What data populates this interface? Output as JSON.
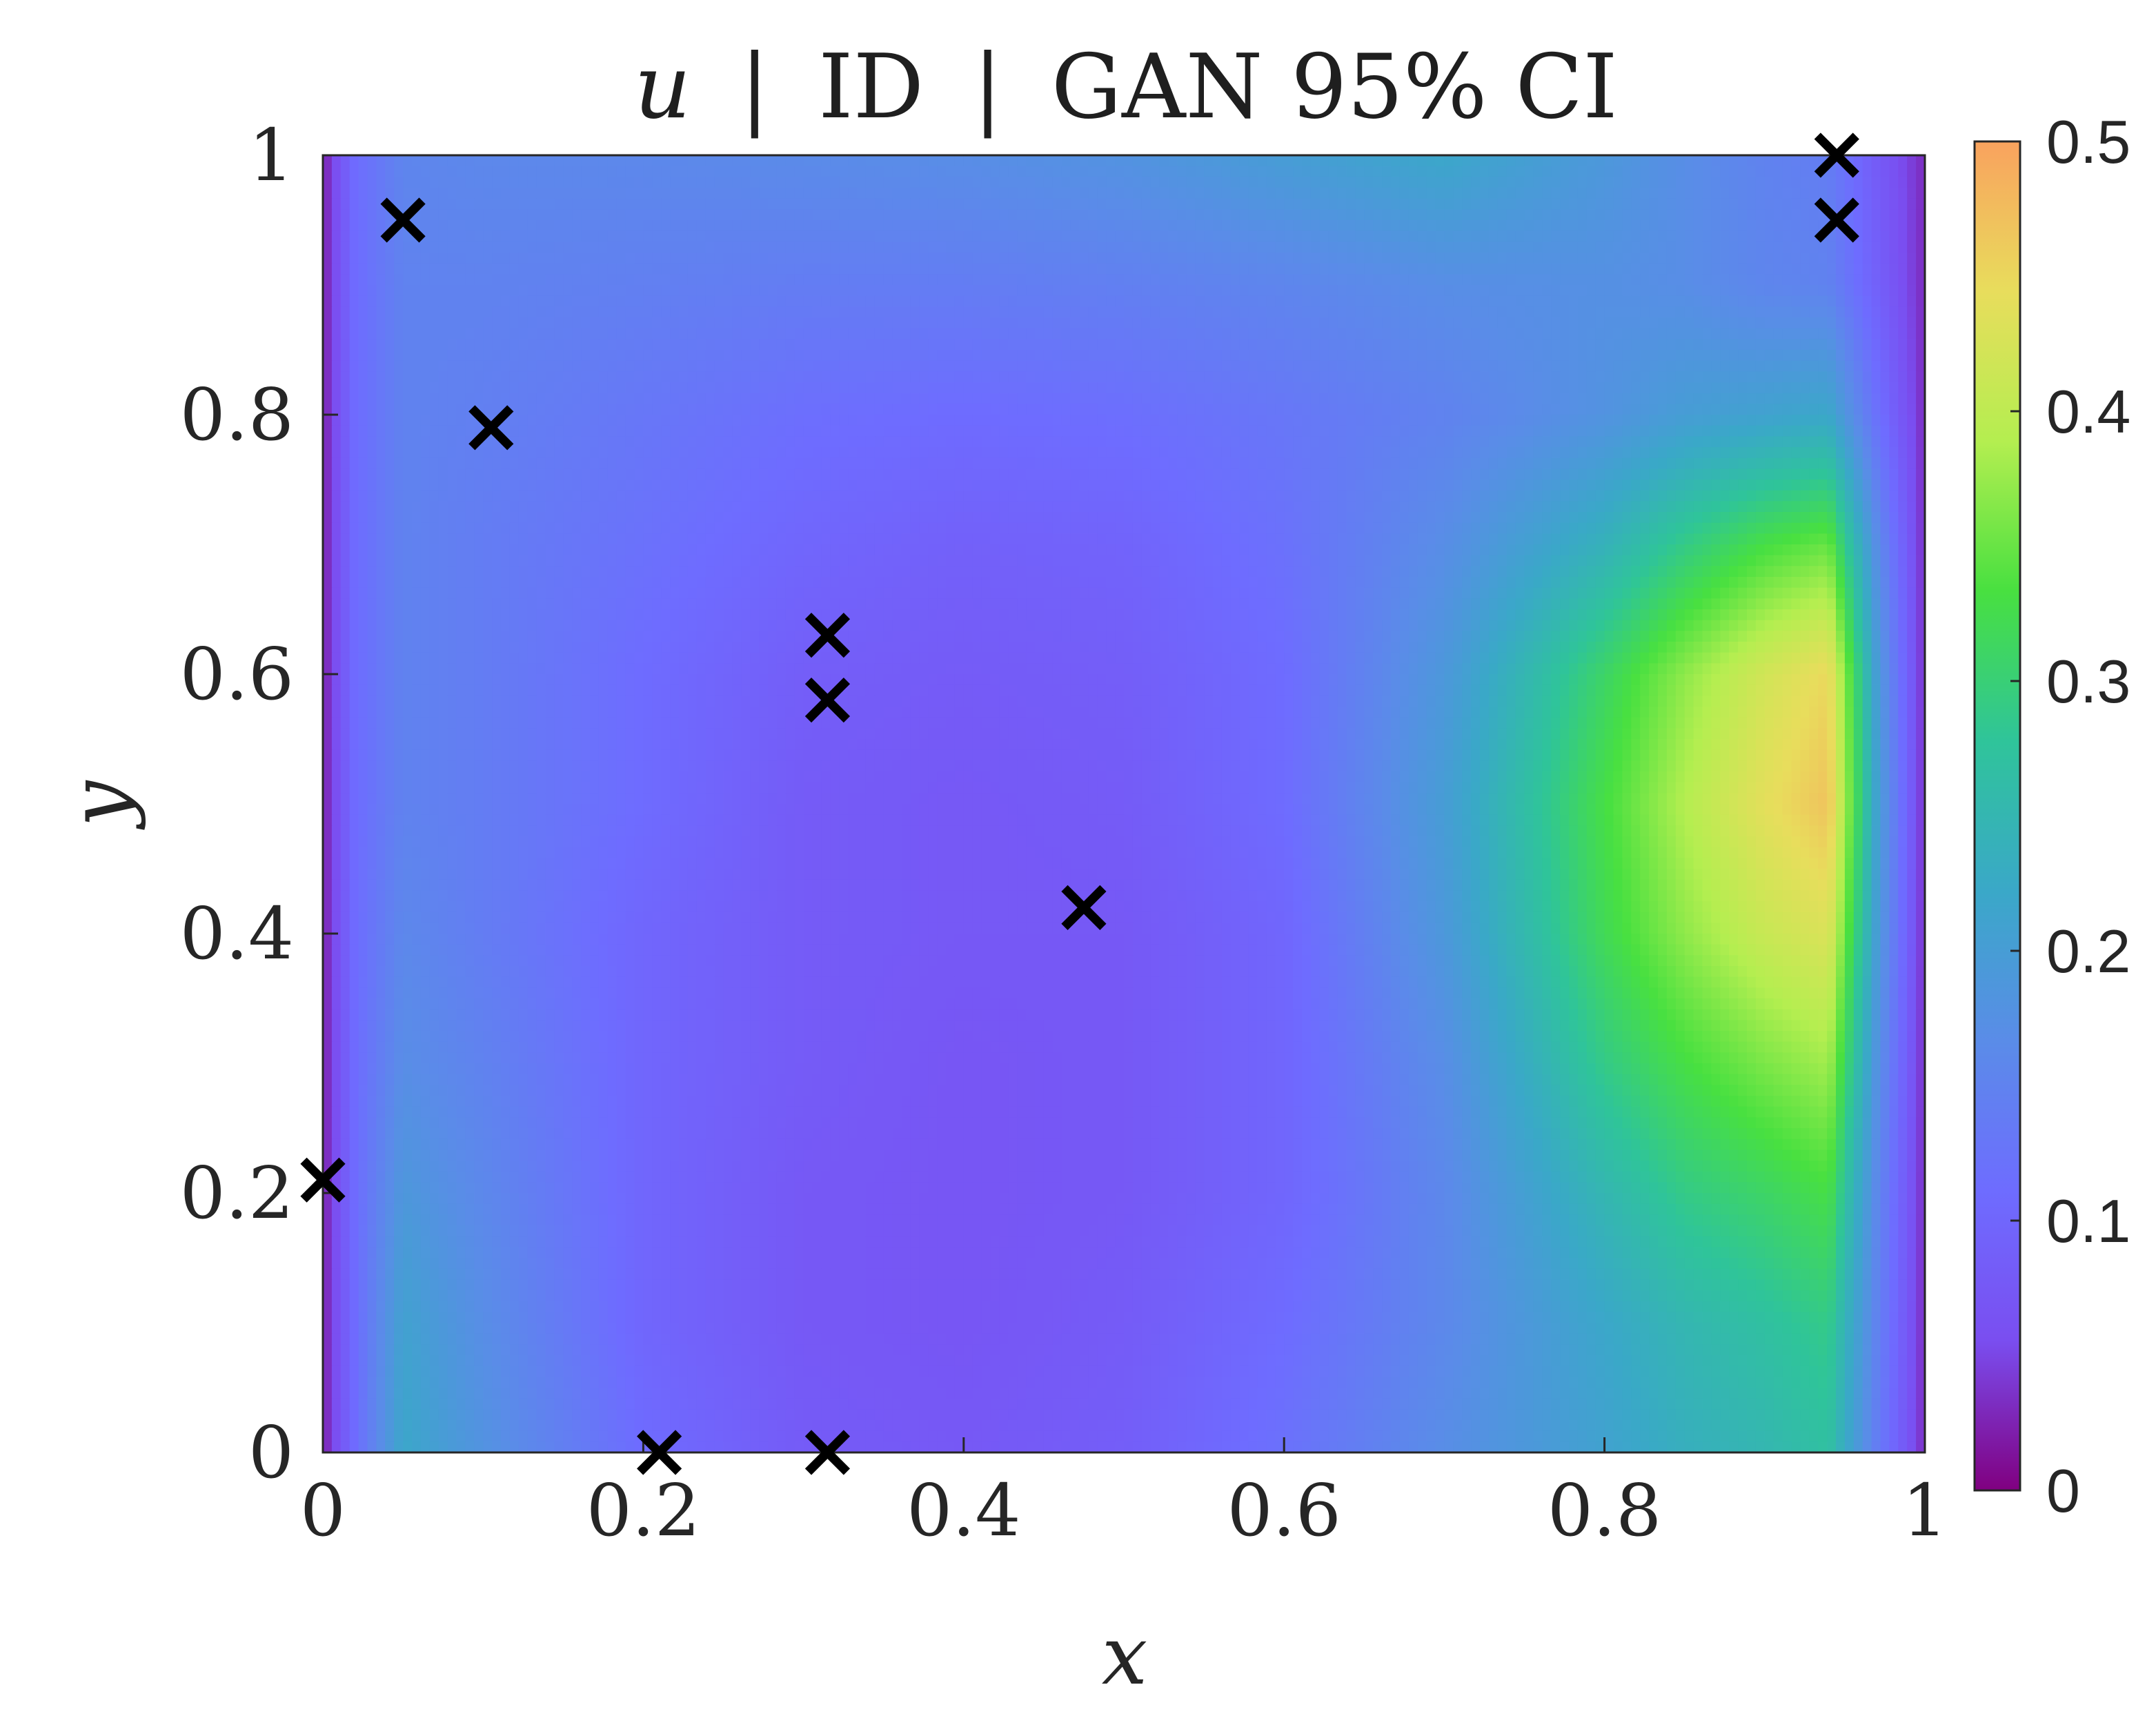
{
  "chart_data": {
    "type": "heatmap",
    "title": "u | ID | GAN 95% CI",
    "title_parts": {
      "variable": "u",
      "separator": "|",
      "mid": "ID",
      "tail": "GAN 95% CI"
    },
    "xlabel": "x",
    "ylabel": "y",
    "xlim": [
      0,
      1
    ],
    "ylim": [
      0,
      1
    ],
    "x_ticks": [
      {
        "value": 0,
        "label": "0"
      },
      {
        "value": 0.2,
        "label": "0.2"
      },
      {
        "value": 0.4,
        "label": "0.4"
      },
      {
        "value": 0.6,
        "label": "0.6"
      },
      {
        "value": 0.8,
        "label": "0.8"
      },
      {
        "value": 1,
        "label": "1"
      }
    ],
    "y_ticks": [
      {
        "value": 0,
        "label": "0"
      },
      {
        "value": 0.2,
        "label": "0.2"
      },
      {
        "value": 0.4,
        "label": "0.4"
      },
      {
        "value": 0.6,
        "label": "0.6"
      },
      {
        "value": 0.8,
        "label": "0.8"
      },
      {
        "value": 1,
        "label": "1"
      }
    ],
    "colorbar": {
      "range": [
        0,
        0.5
      ],
      "ticks": [
        {
          "value": 0,
          "label": "0"
        },
        {
          "value": 0.1,
          "label": "0.1"
        },
        {
          "value": 0.2,
          "label": "0.2"
        },
        {
          "value": 0.3,
          "label": "0.3"
        },
        {
          "value": 0.4,
          "label": "0.4"
        },
        {
          "value": 0.5,
          "label": "0.5"
        }
      ],
      "colormap": [
        "#800080",
        "#7a4ef0",
        "#6e6cff",
        "#5a8ce8",
        "#3aa8c8",
        "#2fc49a",
        "#48e040",
        "#b4ee50",
        "#e8dd5c",
        "#f9a25e"
      ]
    },
    "field_samples": {
      "x": [
        0,
        0.02,
        0.05,
        0.1,
        0.2,
        0.3,
        0.4,
        0.5,
        0.6,
        0.7,
        0.8,
        0.85,
        0.9,
        0.94,
        0.97,
        1.0
      ],
      "y": [
        0,
        0.1,
        0.2,
        0.3,
        0.4,
        0.5,
        0.6,
        0.7,
        0.8,
        0.9,
        1.0
      ],
      "values": [
        [
          0.02,
          0.11,
          0.22,
          0.18,
          0.11,
          0.08,
          0.075,
          0.085,
          0.12,
          0.17,
          0.21,
          0.235,
          0.25,
          0.27,
          0.14,
          0.03
        ],
        [
          0.02,
          0.11,
          0.21,
          0.17,
          0.1,
          0.075,
          0.07,
          0.08,
          0.11,
          0.16,
          0.22,
          0.25,
          0.27,
          0.29,
          0.15,
          0.03
        ],
        [
          0.02,
          0.11,
          0.19,
          0.16,
          0.1,
          0.075,
          0.07,
          0.075,
          0.1,
          0.16,
          0.25,
          0.29,
          0.31,
          0.33,
          0.16,
          0.03
        ],
        [
          0.02,
          0.11,
          0.17,
          0.15,
          0.1,
          0.08,
          0.07,
          0.075,
          0.1,
          0.17,
          0.29,
          0.33,
          0.36,
          0.38,
          0.18,
          0.03
        ],
        [
          0.02,
          0.11,
          0.16,
          0.14,
          0.1,
          0.08,
          0.075,
          0.075,
          0.1,
          0.19,
          0.32,
          0.37,
          0.41,
          0.43,
          0.2,
          0.03
        ],
        [
          0.02,
          0.11,
          0.15,
          0.14,
          0.11,
          0.08,
          0.075,
          0.08,
          0.11,
          0.2,
          0.33,
          0.39,
          0.44,
          0.47,
          0.21,
          0.03
        ],
        [
          0.02,
          0.11,
          0.15,
          0.14,
          0.11,
          0.085,
          0.08,
          0.085,
          0.11,
          0.19,
          0.31,
          0.37,
          0.42,
          0.45,
          0.2,
          0.03
        ],
        [
          0.02,
          0.11,
          0.15,
          0.14,
          0.12,
          0.1,
          0.09,
          0.095,
          0.12,
          0.17,
          0.24,
          0.29,
          0.33,
          0.35,
          0.17,
          0.03
        ],
        [
          0.02,
          0.11,
          0.15,
          0.145,
          0.13,
          0.115,
          0.11,
          0.115,
          0.13,
          0.15,
          0.18,
          0.2,
          0.21,
          0.22,
          0.12,
          0.03
        ],
        [
          0.02,
          0.11,
          0.15,
          0.15,
          0.145,
          0.14,
          0.14,
          0.145,
          0.155,
          0.17,
          0.175,
          0.17,
          0.155,
          0.15,
          0.09,
          0.03
        ],
        [
          0.02,
          0.11,
          0.155,
          0.16,
          0.16,
          0.165,
          0.17,
          0.18,
          0.2,
          0.22,
          0.19,
          0.17,
          0.15,
          0.14,
          0.08,
          0.03
        ]
      ]
    },
    "markers": {
      "symbol": "x",
      "color": "#000000",
      "points": [
        {
          "x": 0.0,
          "y": 0.21
        },
        {
          "x": 0.05,
          "y": 0.95
        },
        {
          "x": 0.105,
          "y": 0.79
        },
        {
          "x": 0.21,
          "y": 0.0
        },
        {
          "x": 0.315,
          "y": 0.0
        },
        {
          "x": 0.315,
          "y": 0.58
        },
        {
          "x": 0.315,
          "y": 0.63
        },
        {
          "x": 0.475,
          "y": 0.42
        },
        {
          "x": 0.945,
          "y": 0.95
        },
        {
          "x": 0.945,
          "y": 1.0
        }
      ]
    }
  }
}
